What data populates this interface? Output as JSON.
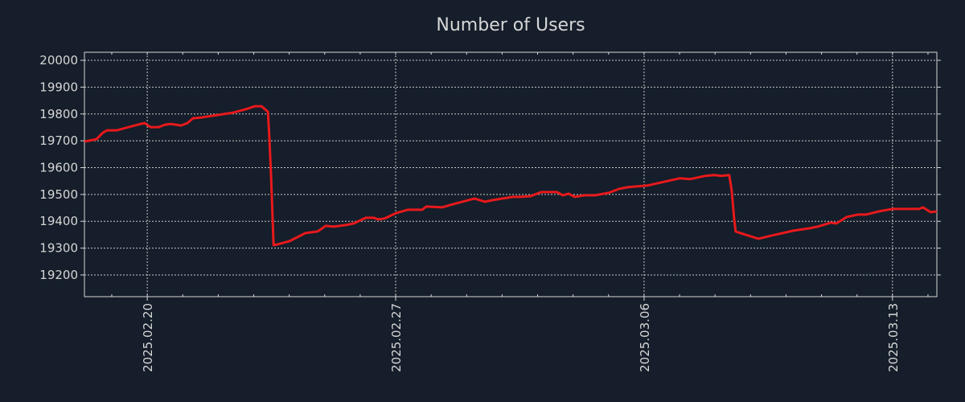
{
  "chart_data": {
    "type": "line",
    "title": "Number of Users",
    "xlabel": "",
    "ylabel": "",
    "x_unit": "days since 2025.02.20",
    "xlim": [
      -1.77,
      22.25
    ],
    "ylim": [
      19119,
      20030
    ],
    "grid": true,
    "legend": "none",
    "yticks": [
      19200,
      19300,
      19400,
      19500,
      19600,
      19700,
      19800,
      19900,
      20000
    ],
    "xticks": [
      {
        "value": 0,
        "label": "2025.02.20"
      },
      {
        "value": 7,
        "label": "2025.02.27"
      },
      {
        "value": 14,
        "label": "2025.03.06"
      },
      {
        "value": 21,
        "label": "2025.03.13"
      }
    ],
    "minor_xticks_every_days": 1,
    "series": [
      {
        "name": "Number of Users",
        "color": "#e8191c",
        "x": [
          -1.77,
          -1.43,
          -1.25,
          -1.13,
          -0.86,
          -0.52,
          -0.18,
          -0.07,
          0.09,
          0.32,
          0.5,
          0.66,
          0.95,
          1.13,
          1.29,
          1.52,
          1.97,
          2.42,
          2.76,
          3.04,
          3.22,
          3.4,
          3.44,
          3.49,
          3.56,
          3.67,
          4.01,
          4.46,
          4.8,
          5.03,
          5.26,
          5.6,
          5.82,
          6.16,
          6.39,
          6.5,
          6.68,
          7.02,
          7.34,
          7.75,
          7.86,
          8.31,
          8.54,
          9.22,
          9.52,
          9.74,
          10.29,
          10.51,
          10.81,
          11.1,
          11.55,
          11.71,
          11.87,
          12.05,
          12.32,
          12.62,
          13.0,
          13.3,
          13.53,
          13.82,
          14.09,
          14.59,
          15.0,
          15.29,
          15.72,
          15.97,
          16.18,
          16.4,
          16.47,
          16.54,
          16.58,
          16.86,
          17.22,
          17.6,
          18.21,
          18.67,
          18.89,
          19.26,
          19.42,
          19.71,
          20.03,
          20.25,
          20.62,
          21.0,
          21.39,
          21.75,
          21.86,
          22.07,
          22.25
        ],
        "y": [
          19697,
          19706,
          19730,
          19739,
          19739,
          19751,
          19763,
          19766,
          19751,
          19751,
          19760,
          19763,
          19757,
          19766,
          19784,
          19787,
          19796,
          19805,
          19817,
          19829,
          19829,
          19808,
          19715,
          19566,
          19311,
          19314,
          19326,
          19356,
          19362,
          19383,
          19380,
          19386,
          19392,
          19413,
          19413,
          19407,
          19410,
          19431,
          19443,
          19443,
          19455,
          19452,
          19461,
          19485,
          19473,
          19479,
          19491,
          19491,
          19494,
          19509,
          19509,
          19497,
          19503,
          19491,
          19497,
          19497,
          19506,
          19521,
          19527,
          19530,
          19533,
          19548,
          19560,
          19557,
          19569,
          19572,
          19569,
          19572,
          19515,
          19407,
          19362,
          19350,
          19335,
          19347,
          19365,
          19374,
          19380,
          19395,
          19392,
          19416,
          19425,
          19425,
          19437,
          19446,
          19446,
          19446,
          19452,
          19434,
          19437
        ]
      }
    ]
  },
  "colors": {
    "background": "#151e2a",
    "axis": "#d6d6d6",
    "grid": "#c8c8c8",
    "line": "#e8191c"
  }
}
